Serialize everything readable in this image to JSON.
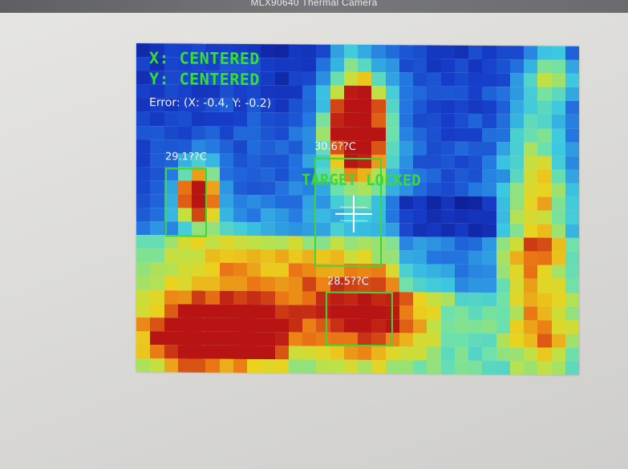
{
  "window": {
    "title": "MLX90640 Thermal Camera"
  },
  "overlay": {
    "x_status": "X: CENTERED",
    "y_status": "Y: CENTERED",
    "error_text": "Error: (X: -0.4, Y: -0.2)",
    "target_status": "TARGET LOCKED"
  },
  "detections": [
    {
      "label": "29.1??C"
    },
    {
      "label": "30.6??C"
    },
    {
      "label": "28.5??C"
    }
  ],
  "colors": {
    "overlay_text": "#37e02e",
    "box_border": "#3fd63a",
    "crosshair": "#ffffff"
  }
}
